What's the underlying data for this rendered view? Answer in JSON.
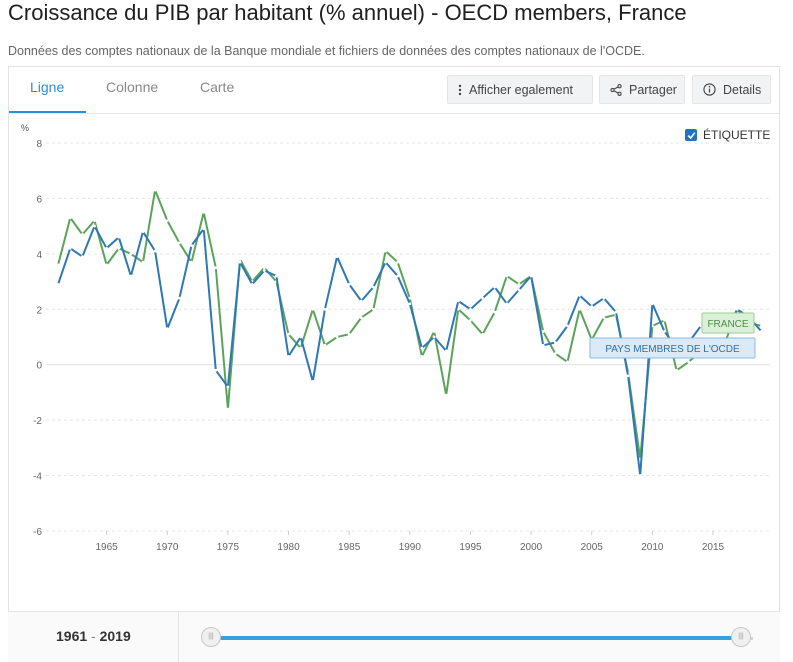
{
  "header": {
    "title": "Croissance du PIB par habitant (% annuel) - OECD members, France",
    "subtitle": "Données des comptes nationaux de la Banque mondiale et fichiers de données des comptes nationaux de l'OCDE."
  },
  "tabs": [
    {
      "label": "Ligne",
      "active": true
    },
    {
      "label": "Colonne",
      "active": false
    },
    {
      "label": "Carte",
      "active": false
    }
  ],
  "toolbar": {
    "show_also": {
      "label": "Afficher egalement",
      "icon": "vertical-dots-icon"
    },
    "share": {
      "label": "Partager",
      "icon": "share-icon"
    },
    "details": {
      "label": "Details",
      "icon": "info-icon"
    }
  },
  "label_toggle": {
    "label": "ÉTIQUETTE",
    "checked": true
  },
  "footer": {
    "start_year": "1961",
    "separator": "-",
    "end_year": "2019"
  },
  "colors": {
    "accent": "#2a8fd6",
    "oecd_line": "#2e78b4",
    "france_line": "#5ca35a"
  },
  "chart_data": {
    "type": "line",
    "ylabel": "%",
    "ylim": [
      -6,
      8
    ],
    "yticks": [
      8,
      6,
      4,
      2,
      0,
      -2,
      -4,
      -6
    ],
    "xlim": [
      1960,
      2019.7
    ],
    "xticks": [
      1965,
      1970,
      1975,
      1980,
      1985,
      1990,
      1995,
      2000,
      2005,
      2010,
      2015
    ],
    "grid": true,
    "x": [
      1961,
      1962,
      1963,
      1964,
      1965,
      1966,
      1967,
      1968,
      1969,
      1970,
      1971,
      1972,
      1973,
      1974,
      1975,
      1976,
      1977,
      1978,
      1979,
      1980,
      1981,
      1982,
      1983,
      1984,
      1985,
      1986,
      1987,
      1988,
      1989,
      1990,
      1991,
      1992,
      1993,
      1994,
      1995,
      1996,
      1997,
      1998,
      1999,
      2000,
      2001,
      2002,
      2003,
      2004,
      2005,
      2006,
      2007,
      2008,
      2009,
      2010,
      2011,
      2012,
      2013,
      2014,
      2015,
      2016,
      2017,
      2018,
      2019
    ],
    "series": [
      {
        "name": "FRANCE",
        "color": "#5ca35a",
        "values": [
          3.6,
          5.3,
          4.7,
          5.2,
          3.6,
          4.2,
          4.0,
          3.7,
          6.3,
          5.2,
          4.4,
          3.7,
          5.5,
          3.5,
          -1.6,
          3.8,
          3.0,
          3.5,
          3.0,
          1.1,
          0.6,
          2.0,
          0.7,
          1.0,
          1.1,
          1.7,
          2.0,
          4.1,
          3.7,
          2.4,
          0.3,
          1.2,
          -1.1,
          2.0,
          1.6,
          1.1,
          1.9,
          3.2,
          2.9,
          3.2,
          1.2,
          0.4,
          0.1,
          2.0,
          0.9,
          1.7,
          1.8,
          -0.3,
          -3.4,
          1.4,
          1.6,
          -0.2,
          0.1,
          0.5,
          0.8,
          0.8,
          2.0,
          1.5,
          1.4
        ]
      },
      {
        "name": "PAYS MEMBRES DE L'OCDE",
        "color": "#2e78b4",
        "values": [
          2.9,
          4.2,
          3.9,
          5.0,
          4.2,
          4.6,
          3.2,
          4.8,
          4.1,
          1.3,
          2.4,
          4.3,
          4.9,
          -0.2,
          -0.8,
          3.7,
          2.9,
          3.4,
          3.2,
          0.3,
          1.0,
          -0.6,
          2.0,
          3.9,
          2.9,
          2.3,
          2.8,
          3.7,
          3.2,
          2.2,
          0.6,
          1.0,
          0.5,
          2.3,
          2.0,
          2.4,
          2.8,
          2.2,
          2.7,
          3.2,
          0.7,
          0.8,
          1.4,
          2.5,
          2.1,
          2.4,
          1.9,
          -0.4,
          -4.0,
          2.2,
          1.2,
          0.6,
          0.8,
          1.4,
          1.8,
          1.2,
          2.0,
          1.7,
          1.2
        ]
      }
    ]
  }
}
